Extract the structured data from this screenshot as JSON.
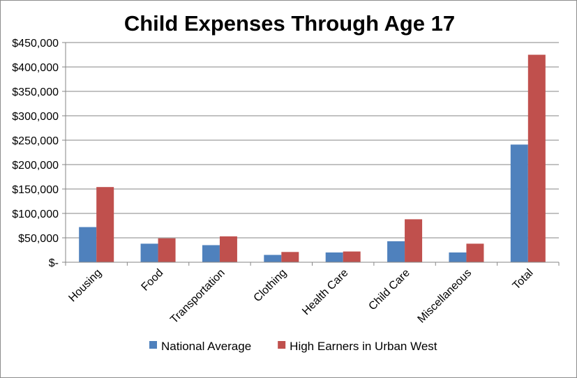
{
  "chart_data": {
    "type": "bar",
    "title": "Child Expenses Through Age 17",
    "xlabel": "",
    "ylabel": "",
    "categories": [
      "Housing",
      "Food",
      "Transportation",
      "Clothing",
      "Health Care",
      "Child Care",
      "Miscellaneous",
      "Total"
    ],
    "series": [
      {
        "name": "National Average",
        "color": "#4f81bd",
        "values": [
          72000,
          38000,
          35000,
          15000,
          20000,
          43000,
          20000,
          241000
        ]
      },
      {
        "name": "High Earners in Urban West",
        "color": "#c0504d",
        "values": [
          154000,
          49000,
          53000,
          21000,
          22000,
          88000,
          38000,
          425000
        ]
      }
    ],
    "ylim": [
      0,
      450000
    ],
    "y_ticks": [
      {
        "value": 0,
        "label": "$-"
      },
      {
        "value": 50000,
        "label": "$50,000"
      },
      {
        "value": 100000,
        "label": "$100,000"
      },
      {
        "value": 150000,
        "label": "$150,000"
      },
      {
        "value": 200000,
        "label": "$200,000"
      },
      {
        "value": 250000,
        "label": "$250,000"
      },
      {
        "value": 300000,
        "label": "$300,000"
      },
      {
        "value": 350000,
        "label": "$350,000"
      },
      {
        "value": 400000,
        "label": "$400,000"
      },
      {
        "value": 450000,
        "label": "$450,000"
      }
    ],
    "grid": true,
    "legend_position": "bottom"
  }
}
